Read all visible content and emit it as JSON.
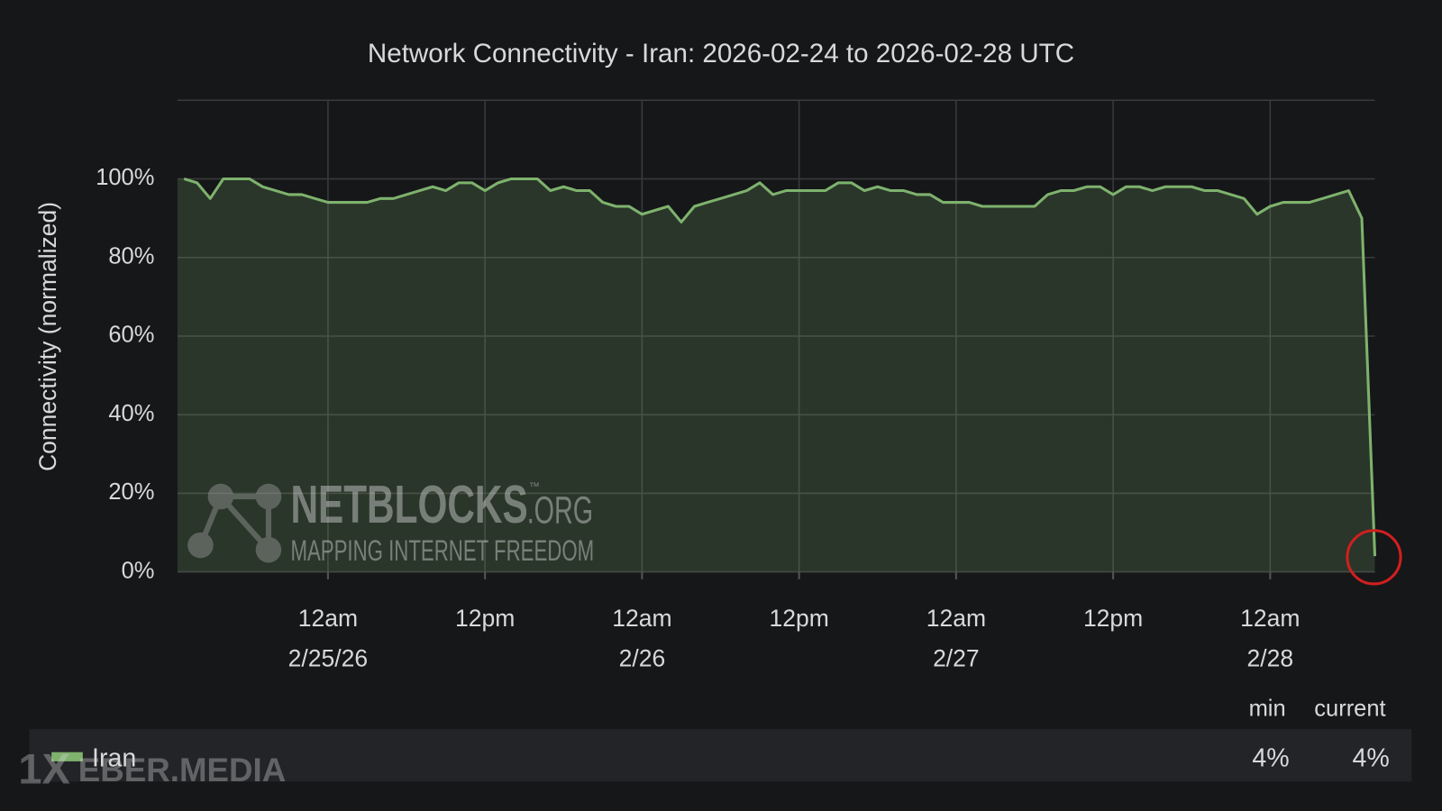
{
  "chart_data": {
    "type": "line",
    "title": "Network Connectivity - Iran: 2026-02-24 to 2026-02-28 UTC",
    "y_label": "Connectivity (normalized)",
    "categories": [
      null,
      null,
      null,
      null,
      null,
      null,
      null,
      null,
      null,
      null,
      null,
      [
        "12am",
        "2/25/26"
      ],
      null,
      null,
      null,
      null,
      null,
      null,
      null,
      null,
      null,
      null,
      null,
      "12pm",
      null,
      null,
      null,
      null,
      null,
      null,
      null,
      null,
      null,
      null,
      null,
      [
        "12am",
        "2/26"
      ],
      null,
      null,
      null,
      null,
      null,
      null,
      null,
      null,
      null,
      null,
      null,
      "12pm",
      null,
      null,
      null,
      null,
      null,
      null,
      null,
      null,
      null,
      null,
      null,
      [
        "12am",
        "2/27"
      ],
      null,
      null,
      null,
      null,
      null,
      null,
      null,
      null,
      null,
      null,
      null,
      "12pm",
      null,
      null,
      null,
      null,
      null,
      null,
      null,
      null,
      null,
      null,
      null,
      [
        "12am",
        "2/28"
      ],
      null,
      null,
      null,
      null,
      null,
      null,
      null,
      null
    ],
    "series": [
      {
        "name": "Iran",
        "color": "#7eb26d",
        "values": [
          100,
          99,
          95,
          100,
          100,
          100,
          98,
          97,
          96,
          96,
          95,
          94,
          94,
          94,
          94,
          95,
          95,
          96,
          97,
          98,
          97,
          99,
          99,
          97,
          99,
          100,
          100,
          100,
          97,
          98,
          97,
          97,
          94,
          93,
          93,
          91,
          92,
          93,
          89,
          93,
          94,
          95,
          96,
          97,
          99,
          96,
          97,
          97,
          97,
          97,
          99,
          99,
          97,
          98,
          97,
          97,
          96,
          96,
          94,
          94,
          94,
          93,
          93,
          93,
          93,
          93,
          96,
          97,
          97,
          98,
          98,
          96,
          98,
          98,
          97,
          98,
          98,
          98,
          97,
          97,
          96,
          95,
          91,
          93,
          94,
          94,
          94,
          95,
          96,
          97,
          90,
          4
        ]
      }
    ],
    "ylim": [
      0,
      120
    ],
    "yticks": [
      {
        "value": 0,
        "label": "0%"
      },
      {
        "value": 20,
        "label": "20%"
      },
      {
        "value": 40,
        "label": "40%"
      },
      {
        "value": 60,
        "label": "60%"
      },
      {
        "value": 80,
        "label": "80%"
      },
      {
        "value": 100,
        "label": "100%"
      }
    ],
    "grid": true,
    "legend_table": {
      "columns": [
        "min",
        "current"
      ],
      "rows": [
        {
          "name": "Iran",
          "cells": [
            "4%",
            "4%"
          ]
        }
      ]
    },
    "watermarks": {
      "brand": "NETBLOCKS",
      "tm": "™",
      "domain": ".ORG",
      "tagline": "MAPPING INTERNET FREEDOM",
      "credit_a": "1X",
      "credit_b": "EBER.MEDIA"
    }
  }
}
